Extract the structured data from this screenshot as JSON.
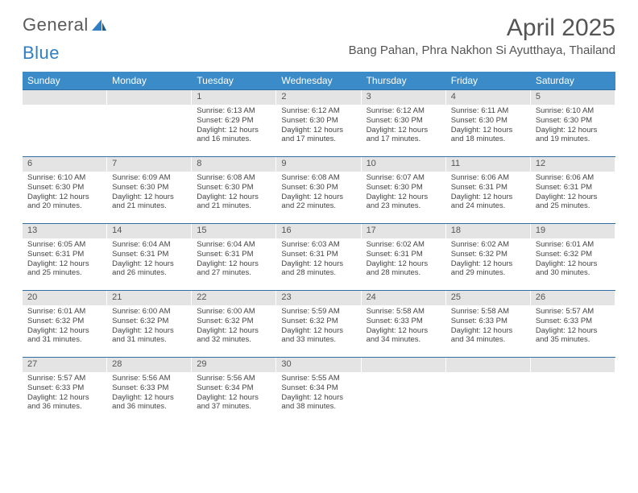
{
  "branding": {
    "logo_text_1": "General",
    "logo_text_2": "Blue"
  },
  "title": "April 2025",
  "location": "Bang Pahan, Phra Nakhon Si Ayutthaya, Thailand",
  "colors": {
    "header_bg": "#3b8bc8",
    "header_text": "#ffffff",
    "rule": "#2f6fa3",
    "daynum_bg": "#e4e4e4",
    "body_text": "#444444",
    "title_text": "#555555",
    "logo_gray": "#5a5a5a",
    "logo_blue": "#2f7fc2",
    "page_bg": "#ffffff"
  },
  "typography": {
    "title_fontsize": 30,
    "location_fontsize": 15,
    "dow_fontsize": 12,
    "daynum_fontsize": 11,
    "body_fontsize": 9.5
  },
  "days_of_week": [
    "Sunday",
    "Monday",
    "Tuesday",
    "Wednesday",
    "Thursday",
    "Friday",
    "Saturday"
  ],
  "weeks": [
    [
      null,
      null,
      {
        "n": "1",
        "sr": "6:13 AM",
        "ss": "6:29 PM",
        "dm": "16"
      },
      {
        "n": "2",
        "sr": "6:12 AM",
        "ss": "6:30 PM",
        "dm": "17"
      },
      {
        "n": "3",
        "sr": "6:12 AM",
        "ss": "6:30 PM",
        "dm": "17"
      },
      {
        "n": "4",
        "sr": "6:11 AM",
        "ss": "6:30 PM",
        "dm": "18"
      },
      {
        "n": "5",
        "sr": "6:10 AM",
        "ss": "6:30 PM",
        "dm": "19"
      }
    ],
    [
      {
        "n": "6",
        "sr": "6:10 AM",
        "ss": "6:30 PM",
        "dm": "20"
      },
      {
        "n": "7",
        "sr": "6:09 AM",
        "ss": "6:30 PM",
        "dm": "21"
      },
      {
        "n": "8",
        "sr": "6:08 AM",
        "ss": "6:30 PM",
        "dm": "21"
      },
      {
        "n": "9",
        "sr": "6:08 AM",
        "ss": "6:30 PM",
        "dm": "22"
      },
      {
        "n": "10",
        "sr": "6:07 AM",
        "ss": "6:30 PM",
        "dm": "23"
      },
      {
        "n": "11",
        "sr": "6:06 AM",
        "ss": "6:31 PM",
        "dm": "24"
      },
      {
        "n": "12",
        "sr": "6:06 AM",
        "ss": "6:31 PM",
        "dm": "25"
      }
    ],
    [
      {
        "n": "13",
        "sr": "6:05 AM",
        "ss": "6:31 PM",
        "dm": "25"
      },
      {
        "n": "14",
        "sr": "6:04 AM",
        "ss": "6:31 PM",
        "dm": "26"
      },
      {
        "n": "15",
        "sr": "6:04 AM",
        "ss": "6:31 PM",
        "dm": "27"
      },
      {
        "n": "16",
        "sr": "6:03 AM",
        "ss": "6:31 PM",
        "dm": "28"
      },
      {
        "n": "17",
        "sr": "6:02 AM",
        "ss": "6:31 PM",
        "dm": "28"
      },
      {
        "n": "18",
        "sr": "6:02 AM",
        "ss": "6:32 PM",
        "dm": "29"
      },
      {
        "n": "19",
        "sr": "6:01 AM",
        "ss": "6:32 PM",
        "dm": "30"
      }
    ],
    [
      {
        "n": "20",
        "sr": "6:01 AM",
        "ss": "6:32 PM",
        "dm": "31"
      },
      {
        "n": "21",
        "sr": "6:00 AM",
        "ss": "6:32 PM",
        "dm": "31"
      },
      {
        "n": "22",
        "sr": "6:00 AM",
        "ss": "6:32 PM",
        "dm": "32"
      },
      {
        "n": "23",
        "sr": "5:59 AM",
        "ss": "6:32 PM",
        "dm": "33"
      },
      {
        "n": "24",
        "sr": "5:58 AM",
        "ss": "6:33 PM",
        "dm": "34"
      },
      {
        "n": "25",
        "sr": "5:58 AM",
        "ss": "6:33 PM",
        "dm": "34"
      },
      {
        "n": "26",
        "sr": "5:57 AM",
        "ss": "6:33 PM",
        "dm": "35"
      }
    ],
    [
      {
        "n": "27",
        "sr": "5:57 AM",
        "ss": "6:33 PM",
        "dm": "36"
      },
      {
        "n": "28",
        "sr": "5:56 AM",
        "ss": "6:33 PM",
        "dm": "36"
      },
      {
        "n": "29",
        "sr": "5:56 AM",
        "ss": "6:34 PM",
        "dm": "37"
      },
      {
        "n": "30",
        "sr": "5:55 AM",
        "ss": "6:34 PM",
        "dm": "38"
      },
      null,
      null,
      null
    ]
  ],
  "labels": {
    "sunrise": "Sunrise:",
    "sunset": "Sunset:",
    "daylight_prefix": "Daylight: 12 hours and",
    "daylight_suffix": "minutes."
  }
}
